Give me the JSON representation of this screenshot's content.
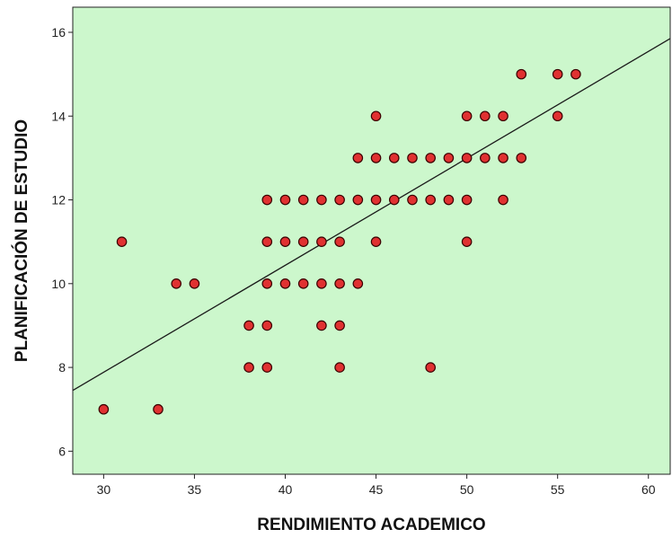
{
  "colors": {
    "plot_background": "#ccf7cc",
    "point_fill": "#e03131",
    "point_stroke": "#3a0000",
    "fit_line": "#1a1a1a"
  },
  "chart_data": {
    "type": "scatter",
    "xlabel": "RENDIMIENTO ACADEMICO",
    "ylabel": "PLANIFICACIÓN DE ESTUDIO",
    "xlim": [
      28.3,
      61.2
    ],
    "ylim": [
      5.45,
      16.6
    ],
    "x_ticks": [
      30,
      35,
      40,
      45,
      50,
      55,
      60
    ],
    "y_ticks": [
      6,
      8,
      10,
      12,
      14,
      16
    ],
    "grid": false,
    "legend": "none",
    "fit_line": {
      "x": [
        28.3,
        61.2
      ],
      "y": [
        7.45,
        15.85
      ]
    },
    "points": [
      [
        30,
        7
      ],
      [
        33,
        7
      ],
      [
        31,
        11
      ],
      [
        34,
        10
      ],
      [
        35,
        10
      ],
      [
        38,
        9
      ],
      [
        38,
        8
      ],
      [
        39,
        12
      ],
      [
        39,
        11
      ],
      [
        39,
        10
      ],
      [
        39,
        9
      ],
      [
        39,
        8
      ],
      [
        40,
        12
      ],
      [
        40,
        11
      ],
      [
        40,
        10
      ],
      [
        41,
        12
      ],
      [
        41,
        11
      ],
      [
        41,
        10
      ],
      [
        42,
        12
      ],
      [
        42,
        11
      ],
      [
        42,
        10
      ],
      [
        42,
        9
      ],
      [
        43,
        12
      ],
      [
        43,
        11
      ],
      [
        43,
        10
      ],
      [
        43,
        9
      ],
      [
        43,
        8
      ],
      [
        44,
        13
      ],
      [
        44,
        12
      ],
      [
        44,
        10
      ],
      [
        45,
        14
      ],
      [
        45,
        13
      ],
      [
        45,
        12
      ],
      [
        45,
        11
      ],
      [
        46,
        13
      ],
      [
        46,
        12
      ],
      [
        47,
        13
      ],
      [
        47,
        12
      ],
      [
        48,
        13
      ],
      [
        48,
        12
      ],
      [
        48,
        8
      ],
      [
        49,
        13
      ],
      [
        49,
        12
      ],
      [
        50,
        14
      ],
      [
        50,
        13
      ],
      [
        50,
        12
      ],
      [
        50,
        11
      ],
      [
        51,
        14
      ],
      [
        51,
        13
      ],
      [
        52,
        14
      ],
      [
        52,
        13
      ],
      [
        52,
        12
      ],
      [
        53,
        15
      ],
      [
        53,
        13
      ],
      [
        55,
        15
      ],
      [
        55,
        14
      ],
      [
        56,
        15
      ]
    ]
  }
}
